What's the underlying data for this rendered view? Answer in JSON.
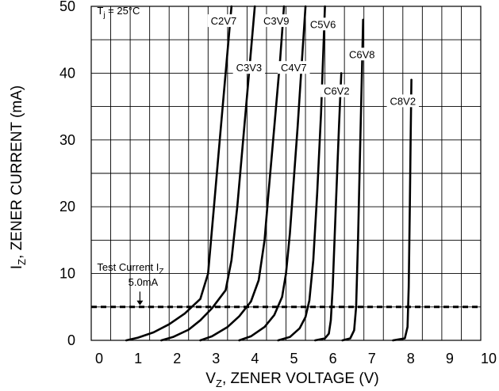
{
  "chart_data": {
    "type": "line",
    "xlabel_main": "V",
    "xlabel_sub": "Z",
    "xlabel_rest": ", ZENER VOLTAGE (V)",
    "ylabel_main": "I",
    "ylabel_sub": "Z",
    "ylabel_rest": ", ZENER CURRENT (mA)",
    "xlim": [
      0,
      10
    ],
    "ylim": [
      0,
      50
    ],
    "xticks": [
      "0",
      "1",
      "2",
      "3",
      "4",
      "5",
      "6",
      "7",
      "8",
      "9",
      "10"
    ],
    "yticks": [
      "0",
      "10",
      "20",
      "30",
      "40",
      "50"
    ],
    "grid": true,
    "annotations": {
      "tj_main": "T",
      "tj_sub": "j",
      "tj_rest": " = 25°C",
      "test_current_line1_main": "Test Current I",
      "test_current_line1_sub": "Z",
      "test_current_line2": "5.0mA",
      "test_current_value": 5
    },
    "series": [
      {
        "name": "C2V7",
        "label_at": [
          3.4,
          47.5
        ],
        "points": [
          [
            0.9,
            0
          ],
          [
            1.2,
            0.4
          ],
          [
            1.6,
            1.2
          ],
          [
            2.0,
            2.4
          ],
          [
            2.4,
            4.0
          ],
          [
            2.8,
            6.2
          ],
          [
            3.0,
            10
          ],
          [
            3.15,
            20
          ],
          [
            3.3,
            30
          ],
          [
            3.45,
            40
          ],
          [
            3.6,
            50
          ]
        ]
      },
      {
        "name": "C3V3",
        "label_at": [
          4.05,
          40.5
        ],
        "points": [
          [
            1.8,
            0
          ],
          [
            2.1,
            0.5
          ],
          [
            2.5,
            1.6
          ],
          [
            2.8,
            3.0
          ],
          [
            3.1,
            4.8
          ],
          [
            3.45,
            7.5
          ],
          [
            3.6,
            12
          ],
          [
            3.75,
            20
          ],
          [
            3.9,
            30
          ],
          [
            4.05,
            40
          ],
          [
            4.2,
            50
          ]
        ]
      },
      {
        "name": "C3V9",
        "label_at": [
          4.75,
          47.5
        ],
        "points": [
          [
            2.8,
            0
          ],
          [
            3.1,
            0.6
          ],
          [
            3.5,
            2.0
          ],
          [
            3.8,
            3.6
          ],
          [
            4.1,
            5.8
          ],
          [
            4.3,
            9
          ],
          [
            4.45,
            15
          ],
          [
            4.55,
            22
          ],
          [
            4.7,
            32
          ],
          [
            4.85,
            42
          ],
          [
            4.95,
            50
          ]
        ]
      },
      {
        "name": "C4V7",
        "label_at": [
          5.2,
          40.5
        ],
        "points": [
          [
            3.8,
            0
          ],
          [
            4.1,
            0.6
          ],
          [
            4.45,
            2.0
          ],
          [
            4.7,
            3.8
          ],
          [
            4.9,
            6.5
          ],
          [
            5.0,
            10
          ],
          [
            5.1,
            16
          ],
          [
            5.2,
            24
          ],
          [
            5.3,
            32
          ],
          [
            5.4,
            41
          ],
          [
            5.5,
            50
          ]
        ]
      },
      {
        "name": "C5V6",
        "label_at": [
          5.95,
          47
        ],
        "points": [
          [
            4.8,
            0
          ],
          [
            5.1,
            0.5
          ],
          [
            5.35,
            1.8
          ],
          [
            5.5,
            3.5
          ],
          [
            5.6,
            6
          ],
          [
            5.7,
            12
          ],
          [
            5.8,
            22
          ],
          [
            5.9,
            34
          ],
          [
            6.0,
            50
          ]
        ]
      },
      {
        "name": "C6V2",
        "label_at": [
          6.3,
          37
        ],
        "points": [
          [
            5.75,
            0
          ],
          [
            6.0,
            0.3
          ],
          [
            6.1,
            1
          ],
          [
            6.15,
            3
          ],
          [
            6.2,
            8
          ],
          [
            6.28,
            20
          ],
          [
            6.36,
            32
          ],
          [
            6.42,
            40
          ]
        ]
      },
      {
        "name": "C6V8",
        "label_at": [
          6.95,
          42.5
        ],
        "points": [
          [
            6.45,
            0
          ],
          [
            6.65,
            0.3
          ],
          [
            6.75,
            1.5
          ],
          [
            6.8,
            5
          ],
          [
            6.85,
            15
          ],
          [
            6.9,
            28
          ],
          [
            6.95,
            40
          ],
          [
            6.98,
            48
          ]
        ]
      },
      {
        "name": "C8V2",
        "label_at": [
          8.0,
          35.5
        ],
        "points": [
          [
            7.75,
            0
          ],
          [
            8.05,
            0.3
          ],
          [
            8.12,
            2
          ],
          [
            8.15,
            8
          ],
          [
            8.18,
            20
          ],
          [
            8.2,
            30
          ],
          [
            8.22,
            39
          ]
        ]
      }
    ]
  }
}
